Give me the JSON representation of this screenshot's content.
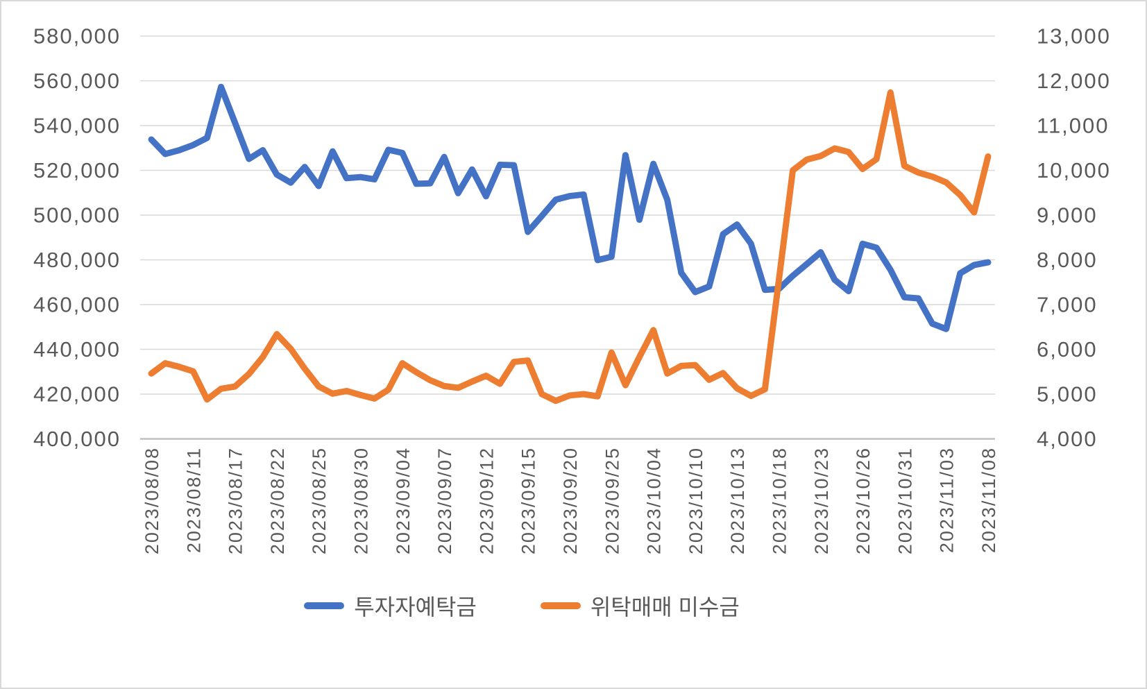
{
  "chart_data": {
    "type": "line",
    "title": "",
    "xlabel": "",
    "ylabel_left": "",
    "ylabel_right": "",
    "grid": true,
    "legend_position": "bottom",
    "background_color": "#FFFFFF",
    "gridline_color": "#D9D9D9",
    "axisline_color": "#BFBFBF",
    "text_color": "#595959",
    "border_color": "#D9D9D9",
    "axis_left": {
      "min": 400000,
      "max": 580000,
      "step": 20000,
      "tick_labels": [
        "580,000",
        "560,000",
        "540,000",
        "520,000",
        "500,000",
        "480,000",
        "460,000",
        "440,000",
        "420,000",
        "400,000"
      ]
    },
    "axis_right": {
      "min": 4000,
      "max": 13000,
      "step": 1000,
      "tick_labels": [
        "13,000",
        "12,000",
        "11,000",
        "10,000",
        "9,000",
        "8,000",
        "7,000",
        "6,000",
        "5,000",
        "4,000"
      ]
    },
    "x_tick_interval": 3,
    "x_tick_labels": [
      "2023/08/08",
      "2023/08/11",
      "2023/08/17",
      "2023/08/22",
      "2023/08/25",
      "2023/08/30",
      "2023/09/04",
      "2023/09/07",
      "2023/09/12",
      "2023/09/15",
      "2023/09/20",
      "2023/09/25",
      "2023/10/04",
      "2023/10/10",
      "2023/10/13",
      "2023/10/18",
      "2023/10/23",
      "2023/10/26",
      "2023/10/31",
      "2023/11/03",
      "2023/11/08"
    ],
    "categories": [
      "2023/08/08",
      "2023/08/09",
      "2023/08/10",
      "2023/08/11",
      "2023/08/14",
      "2023/08/16",
      "2023/08/17",
      "2023/08/18",
      "2023/08/21",
      "2023/08/22",
      "2023/08/23",
      "2023/08/24",
      "2023/08/25",
      "2023/08/28",
      "2023/08/29",
      "2023/08/30",
      "2023/08/31",
      "2023/09/01",
      "2023/09/04",
      "2023/09/05",
      "2023/09/06",
      "2023/09/07",
      "2023/09/08",
      "2023/09/11",
      "2023/09/12",
      "2023/09/13",
      "2023/09/14",
      "2023/09/15",
      "2023/09/18",
      "2023/09/19",
      "2023/09/20",
      "2023/09/21",
      "2023/09/22",
      "2023/09/25",
      "2023/09/26",
      "2023/09/27",
      "2023/10/04",
      "2023/10/05",
      "2023/10/06",
      "2023/10/10",
      "2023/10/11",
      "2023/10/12",
      "2023/10/13",
      "2023/10/16",
      "2023/10/17",
      "2023/10/18",
      "2023/10/19",
      "2023/10/20",
      "2023/10/23",
      "2023/10/24",
      "2023/10/25",
      "2023/10/26",
      "2023/10/27",
      "2023/10/30",
      "2023/10/31",
      "2023/11/01",
      "2023/11/02",
      "2023/11/03",
      "2023/11/06",
      "2023/11/07",
      "2023/11/08"
    ],
    "series": [
      {
        "name": "투자자예탁금",
        "axis": "left",
        "color": "#4472C4",
        "values": [
          533800,
          527300,
          529000,
          531300,
          534500,
          557300,
          541300,
          525100,
          529000,
          518100,
          514500,
          521500,
          513000,
          528500,
          516500,
          517000,
          516000,
          529200,
          527800,
          514000,
          514200,
          526000,
          509800,
          520400,
          508400,
          522500,
          522300,
          492500,
          499600,
          506900,
          508500,
          509200,
          479900,
          481400,
          526800,
          497900,
          522900,
          506800,
          474200,
          465600,
          468100,
          491500,
          495800,
          487200,
          466600,
          467000,
          472900,
          478100,
          483400,
          471100,
          466000,
          487200,
          485400,
          475600,
          463300,
          462800,
          451500,
          449100,
          474000,
          477700,
          478900
        ]
      },
      {
        "name": "위탁매매 미수금",
        "axis": "right",
        "color": "#ED7D31",
        "values": [
          5460,
          5690,
          5610,
          5510,
          4880,
          5120,
          5170,
          5450,
          5830,
          6340,
          6010,
          5570,
          5170,
          5010,
          5070,
          4980,
          4900,
          5100,
          5690,
          5490,
          5310,
          5180,
          5140,
          5280,
          5410,
          5230,
          5720,
          5750,
          5000,
          4850,
          4970,
          5000,
          4950,
          5930,
          5200,
          5830,
          6430,
          5460,
          5630,
          5650,
          5320,
          5470,
          5130,
          4960,
          5110,
          7550,
          10000,
          10240,
          10320,
          10490,
          10410,
          10030,
          10250,
          11740,
          10100,
          9950,
          9860,
          9730,
          9450,
          9060,
          10310
        ]
      }
    ]
  },
  "legend": {
    "items": [
      {
        "label": "투자자예탁금",
        "color": "#4472C4"
      },
      {
        "label": "위탁매매 미수금",
        "color": "#ED7D31"
      }
    ]
  }
}
